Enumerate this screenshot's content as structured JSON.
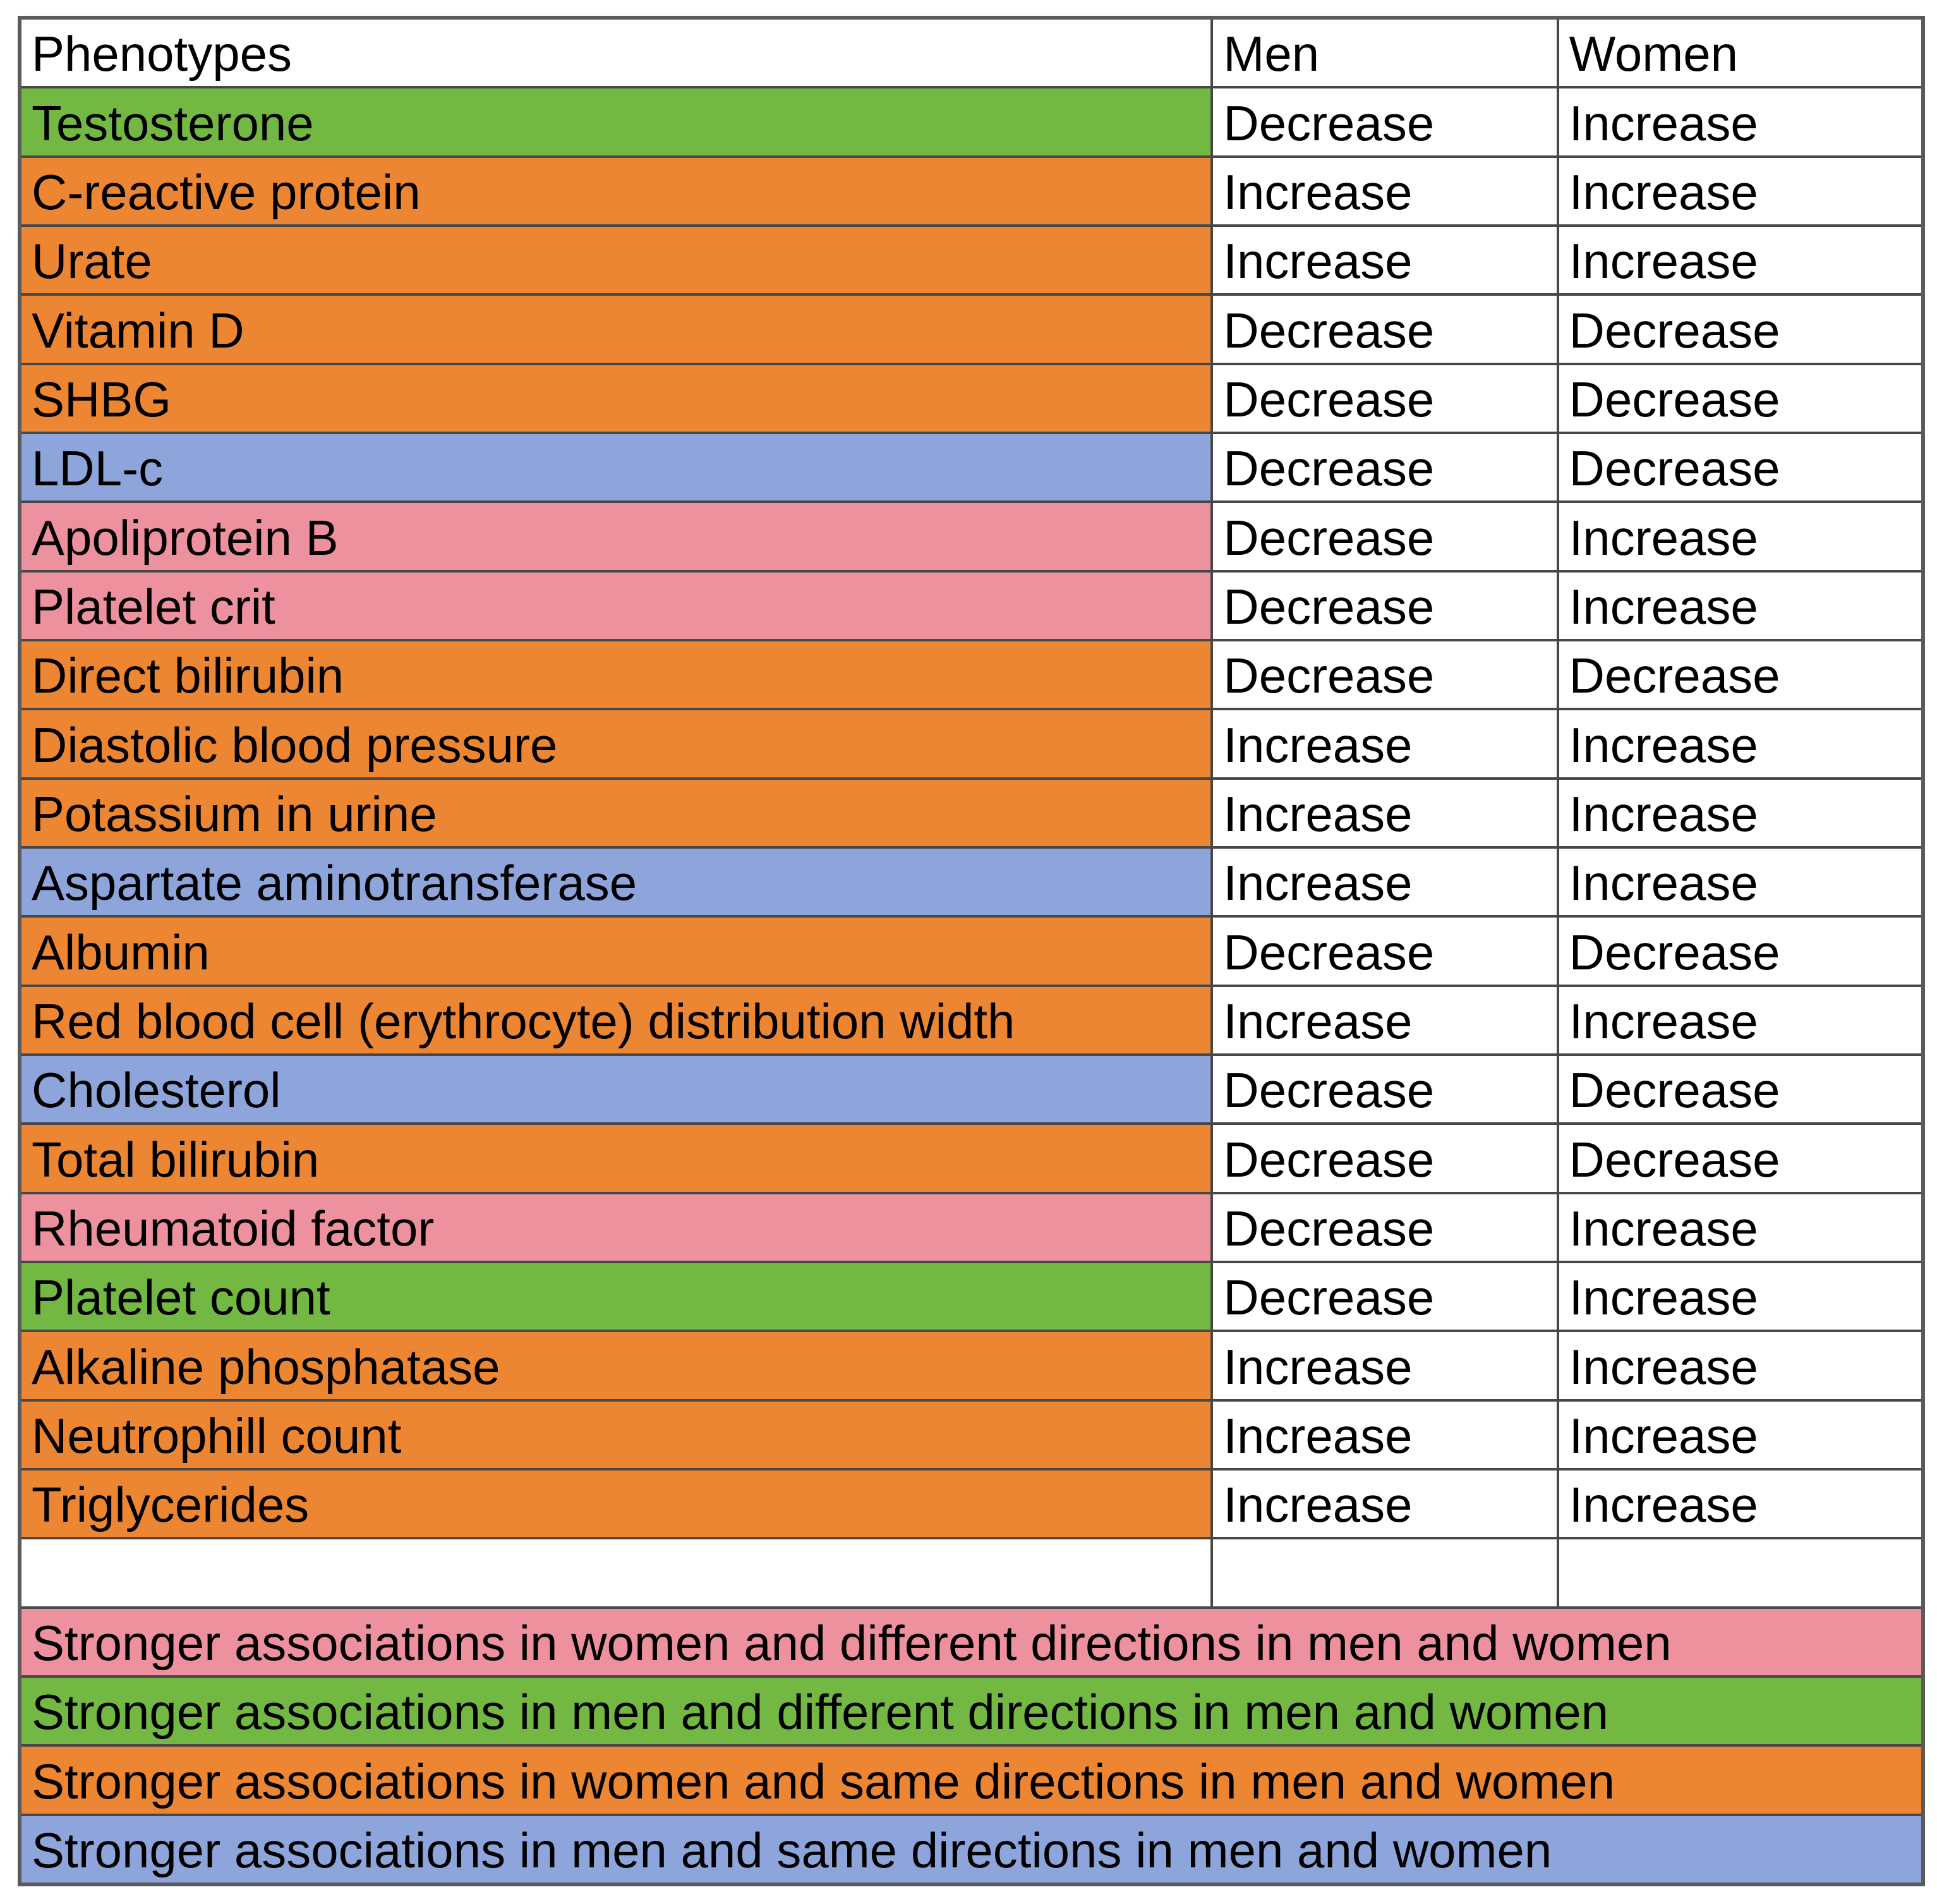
{
  "chart_data": {
    "type": "table",
    "columns": [
      "Phenotypes",
      "Men",
      "Women"
    ],
    "rows": [
      {
        "phenotype": "Testosterone",
        "color": "green",
        "men": "Decrease",
        "women": "Increase"
      },
      {
        "phenotype": "C-reactive protein",
        "color": "orange",
        "men": "Increase",
        "women": "Increase"
      },
      {
        "phenotype": "Urate",
        "color": "orange",
        "men": "Increase",
        "women": "Increase"
      },
      {
        "phenotype": "Vitamin D",
        "color": "orange",
        "men": "Decrease",
        "women": "Decrease"
      },
      {
        "phenotype": "SHBG",
        "color": "orange",
        "men": "Decrease",
        "women": "Decrease"
      },
      {
        "phenotype": "LDL-c",
        "color": "blue",
        "men": "Decrease",
        "women": "Decrease"
      },
      {
        "phenotype": "Apoliprotein B",
        "color": "pink",
        "men": "Decrease",
        "women": "Increase"
      },
      {
        "phenotype": "Platelet crit",
        "color": "pink",
        "men": "Decrease",
        "women": "Increase"
      },
      {
        "phenotype": "Direct bilirubin",
        "color": "orange",
        "men": "Decrease",
        "women": "Decrease"
      },
      {
        "phenotype": "Diastolic blood pressure",
        "color": "orange",
        "men": "Increase",
        "women": "Increase"
      },
      {
        "phenotype": "Potassium in urine",
        "color": "orange",
        "men": "Increase",
        "women": "Increase"
      },
      {
        "phenotype": "Aspartate aminotransferase",
        "color": "blue",
        "men": "Increase",
        "women": "Increase"
      },
      {
        "phenotype": "Albumin",
        "color": "orange",
        "men": "Decrease",
        "women": "Decrease"
      },
      {
        "phenotype": "Red blood cell (erythrocyte) distribution width",
        "color": "orange",
        "men": "Increase",
        "women": "Increase"
      },
      {
        "phenotype": "Cholesterol",
        "color": "blue",
        "men": "Decrease",
        "women": "Decrease"
      },
      {
        "phenotype": "Total bilirubin",
        "color": "orange",
        "men": "Decrease",
        "women": "Decrease"
      },
      {
        "phenotype": "Rheumatoid factor",
        "color": "pink",
        "men": "Decrease",
        "women": "Increase"
      },
      {
        "phenotype": "Platelet count",
        "color": "green",
        "men": "Decrease",
        "women": "Increase"
      },
      {
        "phenotype": "Alkaline phosphatase",
        "color": "orange",
        "men": "Increase",
        "women": "Increase"
      },
      {
        "phenotype": "Neutrophill count",
        "color": "orange",
        "men": "Increase",
        "women": "Increase"
      },
      {
        "phenotype": "Triglycerides",
        "color": "orange",
        "men": "Increase",
        "women": "Increase"
      }
    ],
    "legend": [
      {
        "text": "Stronger associations in women and different directions in men and women",
        "color": "pink"
      },
      {
        "text": "Stronger associations in men and different directions in men and women",
        "color": "green"
      },
      {
        "text": "Stronger associations in women and same directions in men and women",
        "color": "orange"
      },
      {
        "text": "Stronger associations in men and same directions in men and women",
        "color": "blue"
      }
    ],
    "colors": {
      "green": "#73b843",
      "orange": "#ed8633",
      "blue": "#8ea5dc",
      "pink": "#ee919e"
    },
    "layout": "header row + 21 colored data rows + 1 empty row + 4 full-width legend rows; grid borders on; no axes"
  }
}
